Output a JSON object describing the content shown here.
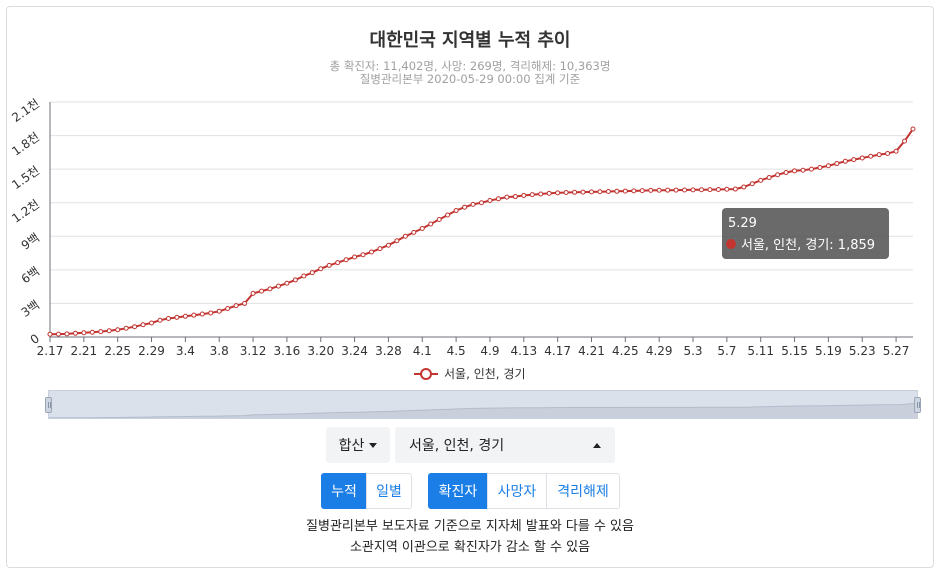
{
  "header": {
    "title": "대한민국 지역별 누적 추이",
    "subtitle1": "총 확진자: 11,402명, 사망: 269명, 격리해제: 10,363명",
    "subtitle2": "질병관리본부 2020-05-29 00:00 집계 기준"
  },
  "chart_data": {
    "type": "line",
    "title": "대한민국 지역별 누적 추이",
    "x": [
      "2.17",
      "2.18",
      "2.19",
      "2.20",
      "2.21",
      "2.22",
      "2.23",
      "2.24",
      "2.25",
      "2.26",
      "2.27",
      "2.28",
      "2.29",
      "3.1",
      "3.2",
      "3.3",
      "3.4",
      "3.5",
      "3.6",
      "3.7",
      "3.8",
      "3.9",
      "3.10",
      "3.11",
      "3.12",
      "3.13",
      "3.14",
      "3.15",
      "3.16",
      "3.17",
      "3.18",
      "3.19",
      "3.20",
      "3.21",
      "3.22",
      "3.23",
      "3.24",
      "3.25",
      "3.26",
      "3.27",
      "3.28",
      "3.29",
      "3.30",
      "3.31",
      "4.1",
      "4.2",
      "4.3",
      "4.4",
      "4.5",
      "4.6",
      "4.7",
      "4.8",
      "4.9",
      "4.10",
      "4.11",
      "4.12",
      "4.13",
      "4.14",
      "4.15",
      "4.16",
      "4.17",
      "4.18",
      "4.19",
      "4.20",
      "4.21",
      "4.22",
      "4.23",
      "4.24",
      "4.25",
      "4.26",
      "4.27",
      "4.28",
      "4.29",
      "4.30",
      "5.1",
      "5.2",
      "5.3",
      "5.4",
      "5.5",
      "5.6",
      "5.7",
      "5.8",
      "5.9",
      "5.10",
      "5.11",
      "5.12",
      "5.13",
      "5.14",
      "5.15",
      "5.16",
      "5.17",
      "5.18",
      "5.19",
      "5.20",
      "5.21",
      "5.22",
      "5.23",
      "5.24",
      "5.25",
      "5.26",
      "5.27",
      "5.28",
      "5.29"
    ],
    "series": [
      {
        "name": "서울, 인천, 경기",
        "color": "#c23531",
        "values": [
          25,
          26,
          28,
          33,
          38,
          42,
          48,
          56,
          65,
          78,
          92,
          110,
          125,
          150,
          165,
          175,
          185,
          195,
          205,
          215,
          230,
          255,
          280,
          300,
          390,
          410,
          430,
          455,
          480,
          510,
          545,
          575,
          610,
          640,
          665,
          690,
          715,
          735,
          760,
          790,
          820,
          860,
          900,
          935,
          970,
          1010,
          1050,
          1090,
          1130,
          1160,
          1185,
          1200,
          1220,
          1235,
          1250,
          1255,
          1265,
          1272,
          1278,
          1284,
          1288,
          1291,
          1293,
          1295,
          1297,
          1298,
          1300,
          1302,
          1304,
          1306,
          1308,
          1310,
          1311,
          1312,
          1313,
          1314,
          1315,
          1316,
          1317,
          1318,
          1320,
          1322,
          1340,
          1370,
          1400,
          1425,
          1450,
          1470,
          1485,
          1490,
          1500,
          1515,
          1530,
          1550,
          1570,
          1585,
          1600,
          1615,
          1630,
          1640,
          1660,
          1750,
          1859
        ]
      }
    ],
    "xticks": [
      "2.17",
      "2.21",
      "2.25",
      "2.29",
      "3.4",
      "3.8",
      "3.12",
      "3.16",
      "3.20",
      "3.24",
      "3.28",
      "4.1",
      "4.5",
      "4.9",
      "4.13",
      "4.17",
      "4.21",
      "4.25",
      "4.29",
      "5.3",
      "5.7",
      "5.11",
      "5.15",
      "5.19",
      "5.23",
      "5.27"
    ],
    "yticks": [
      0,
      300,
      600,
      900,
      1200,
      1500,
      1800,
      2100
    ],
    "ytick_labels": [
      "0",
      "3백",
      "6백",
      "9백",
      "1.2천",
      "1.5천",
      "1.8천",
      "2.1천"
    ],
    "ylim": [
      0,
      2100
    ],
    "grid": true,
    "legend": "bottom-center",
    "tooltip": {
      "date": "5.29",
      "text": "서울, 인천, 경기: 1,859"
    }
  },
  "controls": {
    "aggregate_label": "합산",
    "region_value": "서울, 인천, 경기",
    "mode_buttons": [
      "누적",
      "일별"
    ],
    "metric_buttons": [
      "확진자",
      "사망자",
      "격리해제"
    ],
    "active_mode": "누적",
    "active_metric": "확진자"
  },
  "notes": {
    "line1": "질병관리본부 보도자료 기준으로 지자체 발표와 다를 수 있음",
    "line2": "소관지역 이관으로 확진자가 감소 할 수 있음"
  }
}
